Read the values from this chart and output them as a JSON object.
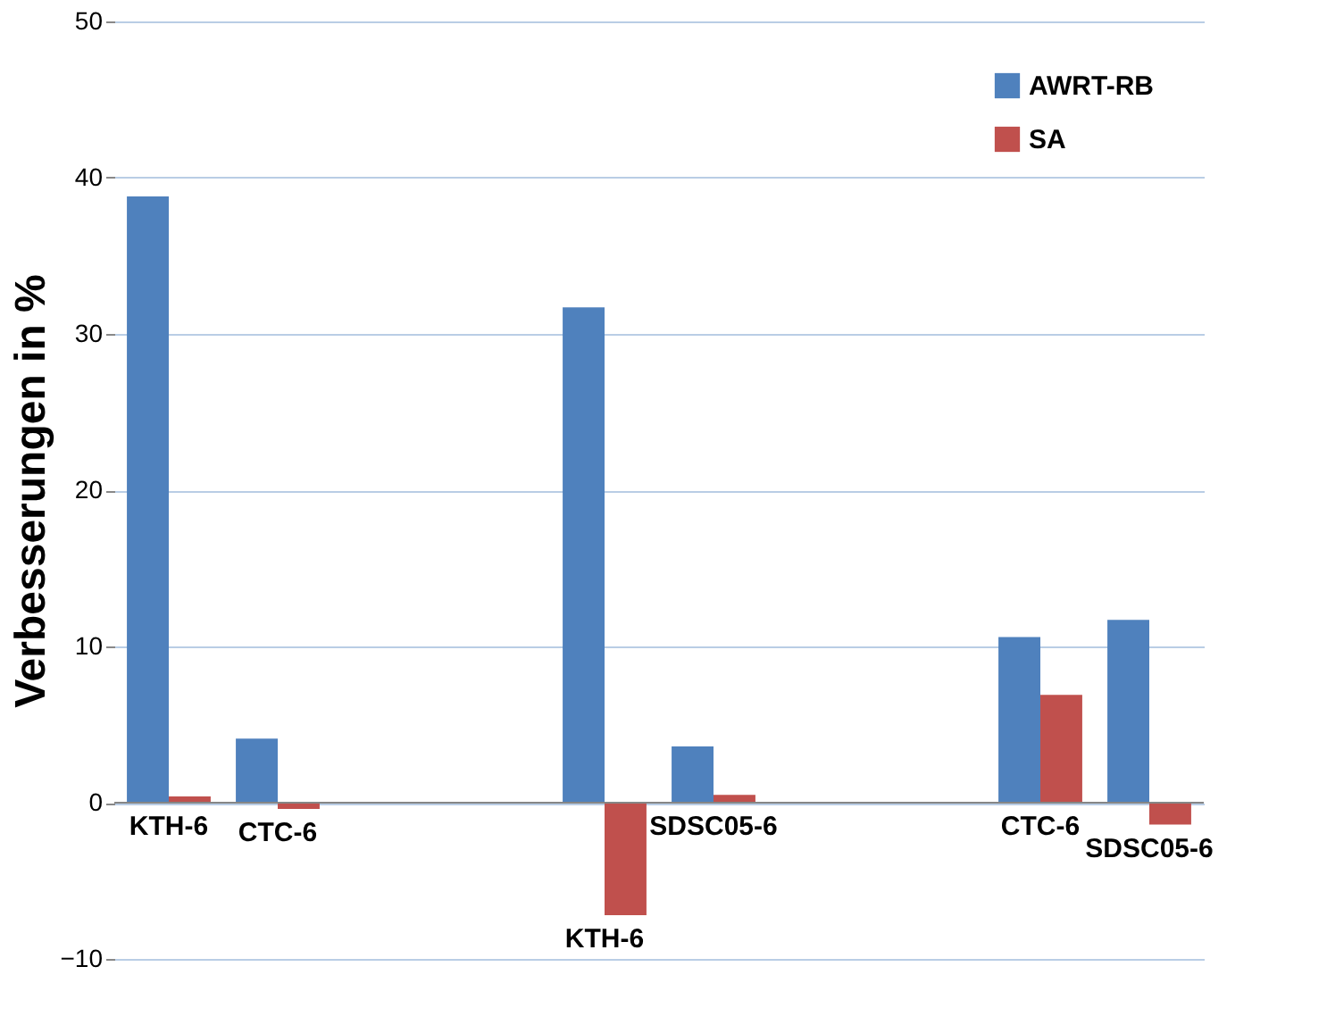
{
  "chart_data": {
    "type": "bar",
    "ylabel": "Verbesserungen in %",
    "categories": [
      "KTH-6",
      "CTC-6",
      null,
      null,
      "KTH-6",
      "SDSC05-6",
      null,
      null,
      "CTC-6",
      "SDSC05-6"
    ],
    "series": [
      {
        "name": "AWRT-RB",
        "color": "#4f81bd",
        "values": [
          38.8,
          4.1,
          null,
          null,
          31.7,
          3.6,
          null,
          null,
          10.6,
          11.7
        ]
      },
      {
        "name": "SA",
        "color": "#c0504d",
        "values": [
          0.4,
          -0.4,
          null,
          null,
          -7.2,
          0.5,
          null,
          null,
          6.9,
          -1.4
        ]
      }
    ],
    "ylim": [
      -10,
      50
    ],
    "yticks": [
      -10,
      0,
      10,
      20,
      30,
      40,
      50
    ],
    "grid": "y",
    "legend": "top right"
  }
}
